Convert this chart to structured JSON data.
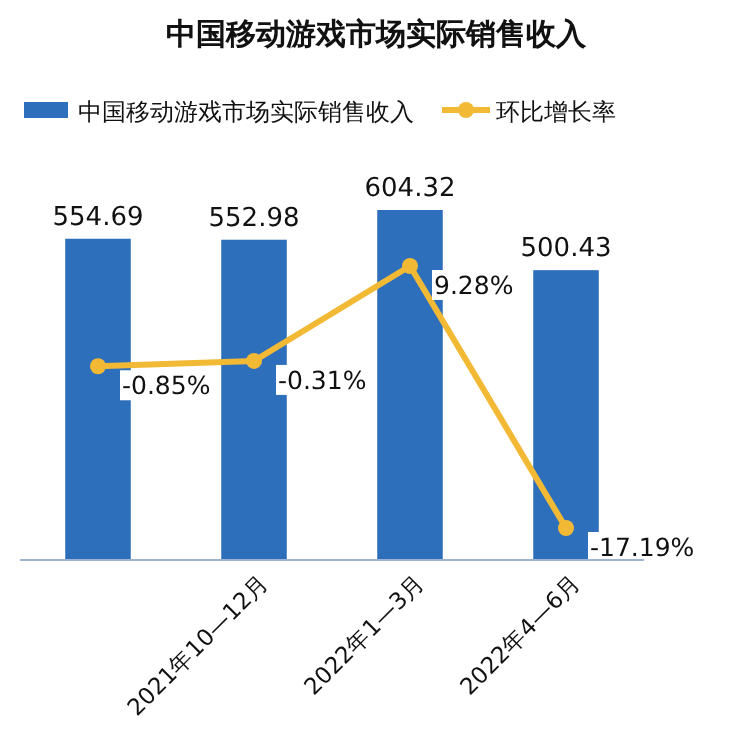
{
  "chart_data": {
    "type": "bar",
    "title": "中国移动游戏市场实际销售收入",
    "categories": [
      null,
      "2021年10—12月",
      "2022年1—3月",
      "2022年4—6月"
    ],
    "series": [
      {
        "name": "中国移动游戏市场实际销售收入",
        "color": "#2e6fbb",
        "values": [
          554.69,
          552.98,
          604.32,
          500.43
        ],
        "value_labels": [
          "554.69",
          "552.98",
          "604.32",
          "500.43"
        ]
      },
      {
        "name": "环比增长率",
        "type": "line",
        "axis": "y2",
        "color": "#f2b935",
        "marker": "circle",
        "values": [
          -0.85,
          -0.31,
          9.28,
          -17.19
        ],
        "value_labels": [
          "-0.85%",
          "-0.31%",
          "9.28%",
          "-17.19%"
        ]
      }
    ],
    "legend": "top"
  }
}
